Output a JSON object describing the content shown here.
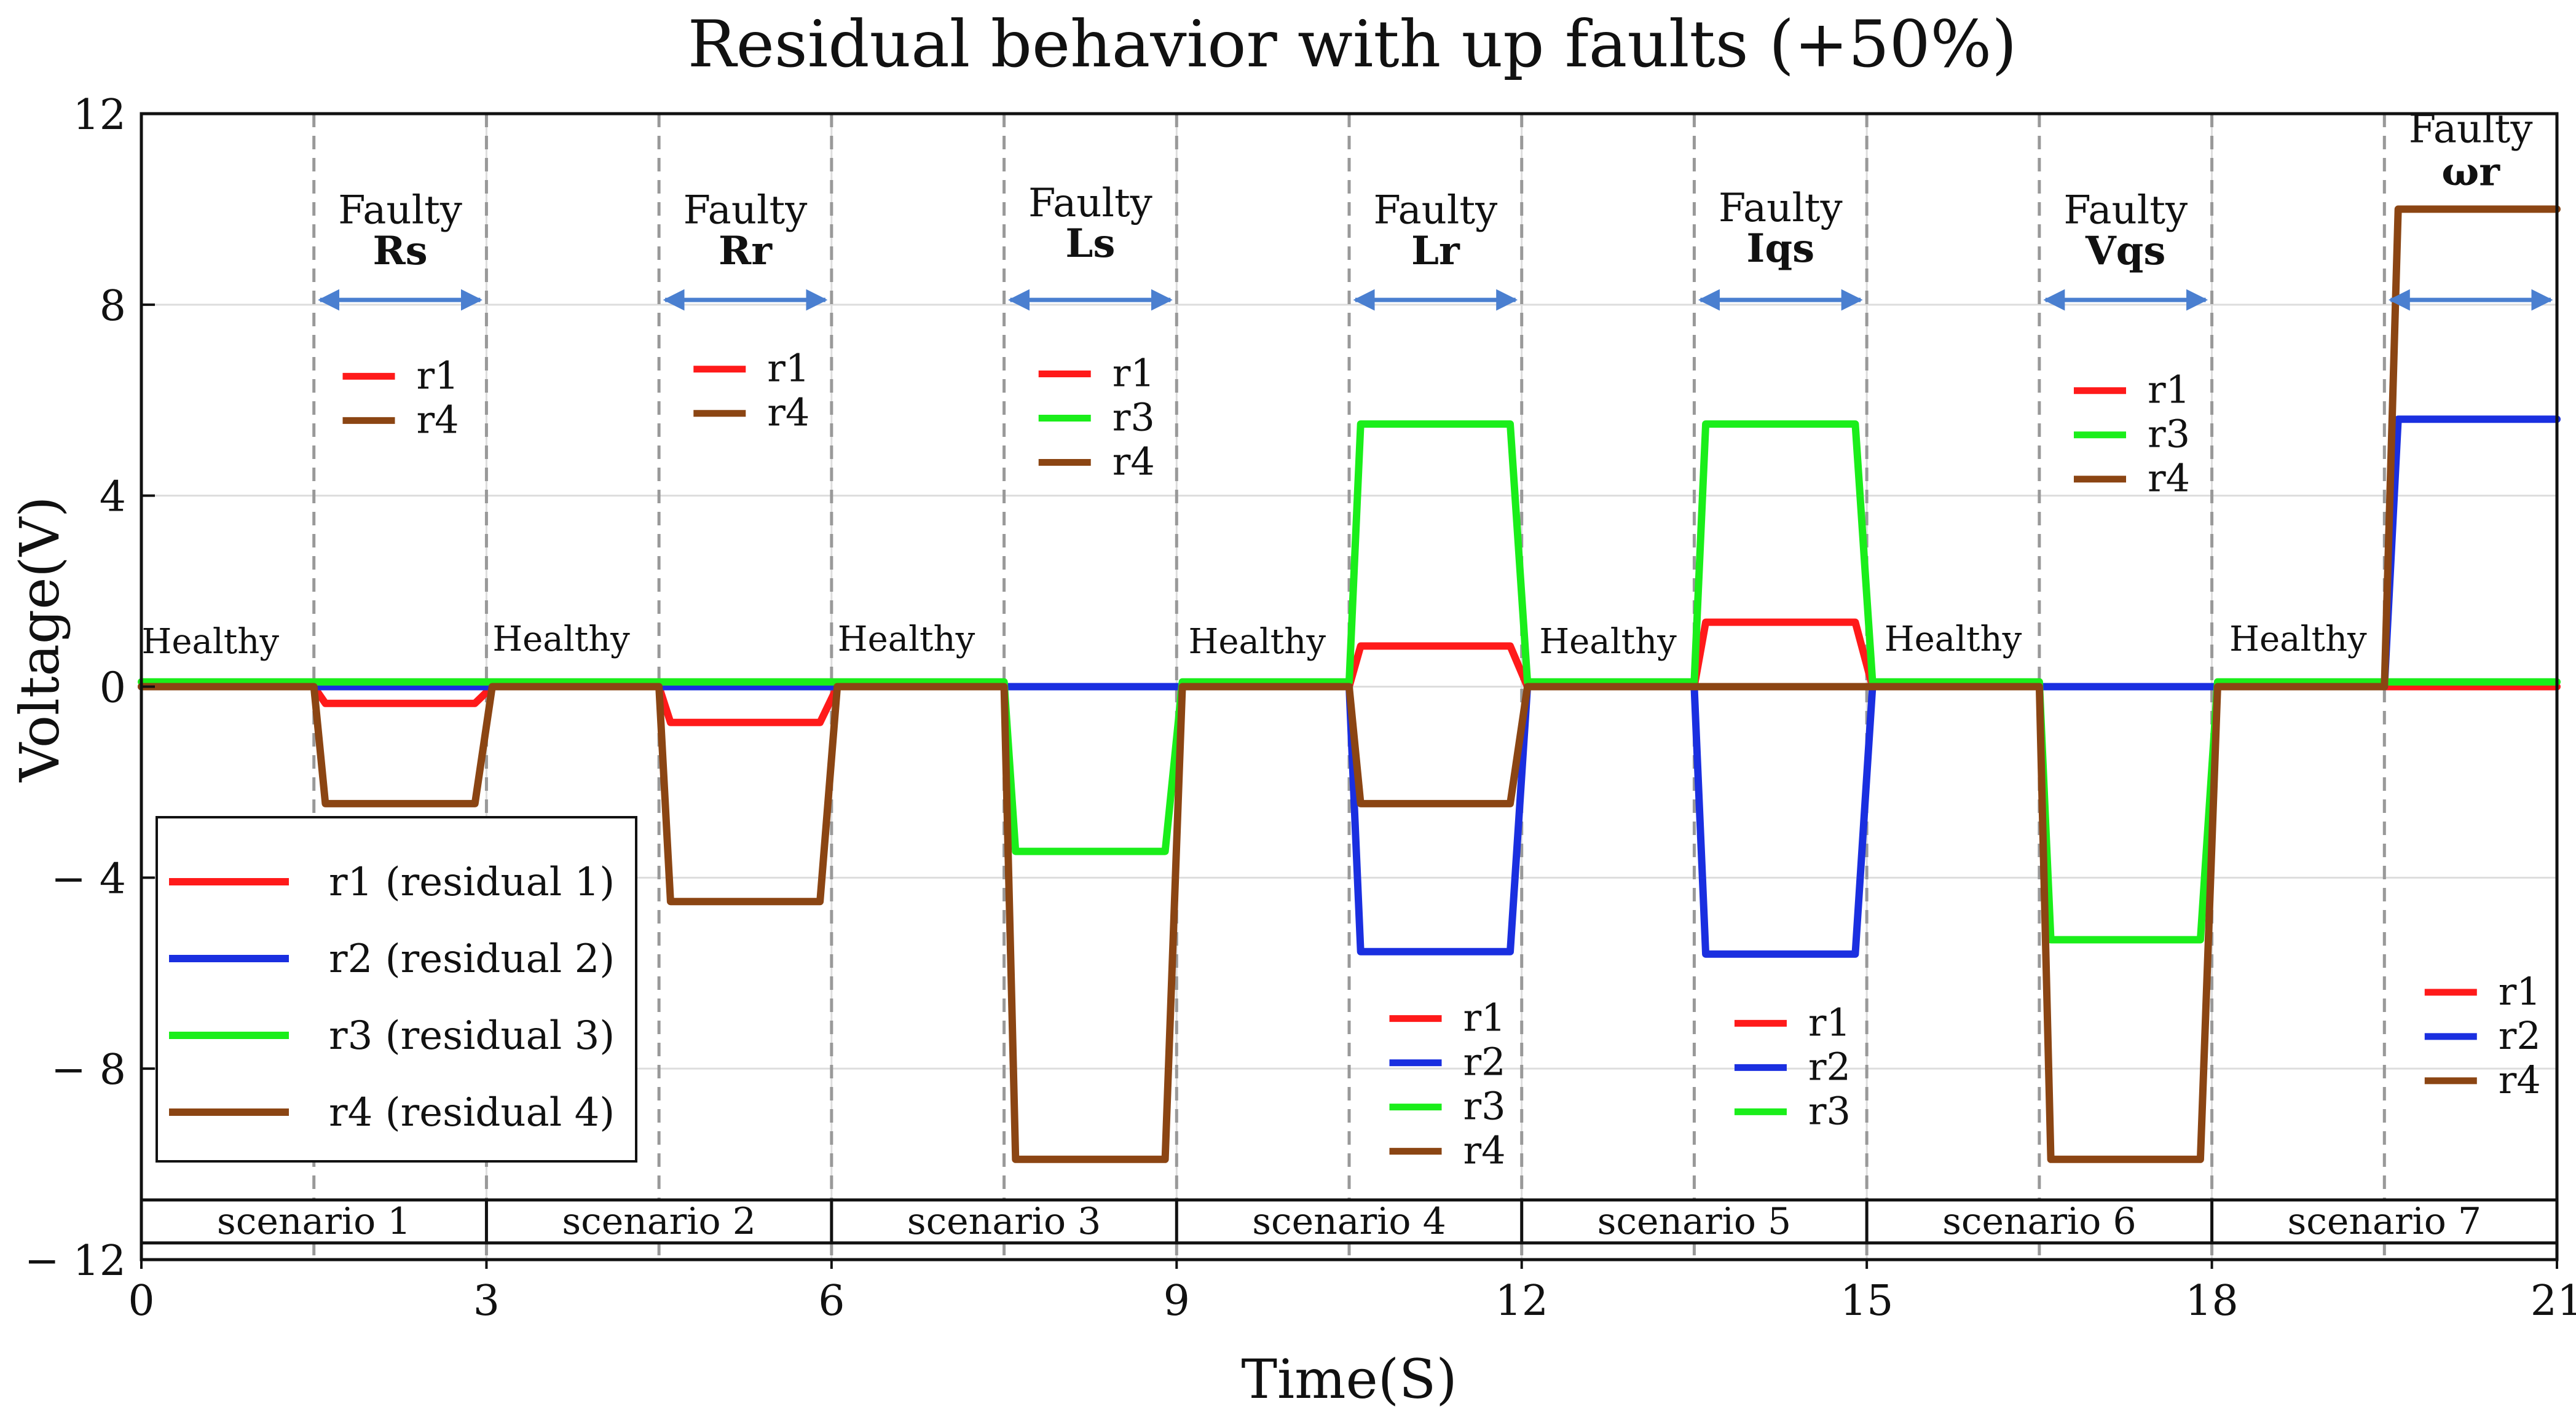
{
  "chart_data": {
    "type": "line",
    "title": "Residual behavior with up faults (+50%)",
    "xlabel": "Time(S)",
    "ylabel": "Voltage(V)",
    "xlim": [
      0,
      21
    ],
    "ylim": [
      -12,
      12
    ],
    "x_ticks": [
      {
        "value": 0,
        "label": "0"
      },
      {
        "value": 3,
        "label": "3"
      },
      {
        "value": 6,
        "label": "6"
      },
      {
        "value": 9,
        "label": "9"
      },
      {
        "value": 12,
        "label": "12"
      },
      {
        "value": 15,
        "label": "15"
      },
      {
        "value": 18,
        "label": "18"
      },
      {
        "value": 21,
        "label": "21"
      }
    ],
    "y_ticks": [
      {
        "value": 12,
        "label": "12"
      },
      {
        "value": 8,
        "label": "8"
      },
      {
        "value": 4,
        "label": "4"
      },
      {
        "value": 0,
        "label": "0"
      },
      {
        "value": -4,
        "label": "− 4"
      },
      {
        "value": -8,
        "label": "− 8"
      },
      {
        "value": -12,
        "label": "− 12"
      }
    ],
    "grid": true,
    "series": [
      {
        "name": "r1",
        "legend_label": "r1 (residual 1)",
        "color": "#ff1a1a",
        "points": [
          [
            0,
            0
          ],
          [
            1.5,
            0
          ],
          [
            1.6,
            -0.35
          ],
          [
            2.9,
            -0.35
          ],
          [
            3.05,
            0
          ],
          [
            4.5,
            0
          ],
          [
            4.6,
            -0.75
          ],
          [
            5.9,
            -0.75
          ],
          [
            6.05,
            0
          ],
          [
            10.5,
            0
          ],
          [
            10.6,
            0.85
          ],
          [
            11.9,
            0.85
          ],
          [
            12.05,
            0
          ],
          [
            13.5,
            0
          ],
          [
            13.6,
            1.35
          ],
          [
            14.9,
            1.35
          ],
          [
            15.05,
            0
          ],
          [
            21,
            0
          ]
        ]
      },
      {
        "name": "r2",
        "legend_label": "r2 (residual 2)",
        "color": "#1a2fe0",
        "points": [
          [
            0,
            0
          ],
          [
            10.5,
            0
          ],
          [
            10.6,
            -5.55
          ],
          [
            11.9,
            -5.55
          ],
          [
            12.05,
            0
          ],
          [
            13.5,
            0
          ],
          [
            13.6,
            -5.6
          ],
          [
            14.9,
            -5.6
          ],
          [
            15.05,
            0
          ],
          [
            19.5,
            0
          ],
          [
            19.62,
            5.6
          ],
          [
            21,
            5.6
          ]
        ]
      },
      {
        "name": "r3",
        "legend_label": "r3 (residual 3)",
        "color": "#1aee1a",
        "points": [
          [
            0,
            0.1
          ],
          [
            7.5,
            0.1
          ],
          [
            7.6,
            -3.45
          ],
          [
            8.9,
            -3.45
          ],
          [
            9.05,
            0.1
          ],
          [
            10.5,
            0.1
          ],
          [
            10.6,
            5.5
          ],
          [
            11.9,
            5.5
          ],
          [
            12.05,
            0.1
          ],
          [
            13.5,
            0.1
          ],
          [
            13.6,
            5.5
          ],
          [
            14.9,
            5.5
          ],
          [
            15.05,
            0.1
          ],
          [
            16.5,
            0.1
          ],
          [
            16.6,
            -5.3
          ],
          [
            17.9,
            -5.3
          ],
          [
            18.05,
            0.1
          ],
          [
            21,
            0.1
          ]
        ]
      },
      {
        "name": "r4",
        "legend_label": "r4 (residual 4)",
        "color": "#8b4513",
        "points": [
          [
            0,
            0
          ],
          [
            1.5,
            0
          ],
          [
            1.6,
            -2.45
          ],
          [
            2.9,
            -2.45
          ],
          [
            3.05,
            0
          ],
          [
            4.5,
            0
          ],
          [
            4.6,
            -4.5
          ],
          [
            5.9,
            -4.5
          ],
          [
            6.05,
            0
          ],
          [
            7.5,
            0
          ],
          [
            7.6,
            -9.9
          ],
          [
            8.9,
            -9.9
          ],
          [
            9.05,
            0
          ],
          [
            10.5,
            0
          ],
          [
            10.6,
            -2.45
          ],
          [
            11.9,
            -2.45
          ],
          [
            12.05,
            0
          ],
          [
            16.5,
            0
          ],
          [
            16.6,
            -9.9
          ],
          [
            17.9,
            -9.9
          ],
          [
            18.05,
            0
          ],
          [
            19.5,
            0
          ],
          [
            19.62,
            10
          ],
          [
            21,
            10
          ]
        ]
      }
    ],
    "fault_boundaries": [
      1.5,
      3,
      4.5,
      6,
      7.5,
      9,
      10.5,
      12,
      13.5,
      15,
      16.5,
      18,
      19.5
    ],
    "healthy_labels": [
      {
        "x": 0.6,
        "y": 0.7,
        "text": "Healthy"
      },
      {
        "x": 3.65,
        "y": 0.75,
        "text": "Healthy"
      },
      {
        "x": 6.65,
        "y": 0.75,
        "text": "Healthy"
      },
      {
        "x": 9.7,
        "y": 0.7,
        "text": "Healthy"
      },
      {
        "x": 12.75,
        "y": 0.7,
        "text": "Healthy"
      },
      {
        "x": 15.75,
        "y": 0.75,
        "text": "Healthy"
      },
      {
        "x": 18.75,
        "y": 0.75,
        "text": "Healthy"
      }
    ],
    "fault_annotations": [
      {
        "x0": 1.5,
        "x1": 3,
        "arrow_y": 8.1,
        "label_x": 2.25,
        "line1": "Faulty",
        "line2": "Rs",
        "line1_y": 9.7,
        "line2_y": 8.85,
        "keys": [
          "r1",
          "r4"
        ],
        "key_x": 1.75,
        "key_y": 6.5
      },
      {
        "x0": 4.5,
        "x1": 6,
        "arrow_y": 8.1,
        "label_x": 5.25,
        "line1": "Faulty",
        "line2": "Rr",
        "line1_y": 9.7,
        "line2_y": 8.85,
        "keys": [
          "r1",
          "r4"
        ],
        "key_x": 4.8,
        "key_y": 6.65
      },
      {
        "x0": 7.5,
        "x1": 9,
        "arrow_y": 8.1,
        "label_x": 8.25,
        "line1": "Faulty",
        "line2": "Ls",
        "line1_y": 9.85,
        "line2_y": 9.0,
        "keys": [
          "r1",
          "r3",
          "r4"
        ],
        "key_x": 7.8,
        "key_y": 6.55
      },
      {
        "x0": 10.5,
        "x1": 12,
        "arrow_y": 8.1,
        "label_x": 11.25,
        "line1": "Faulty",
        "line2": "Lr",
        "line1_y": 9.7,
        "line2_y": 8.85,
        "keys": [
          "r1",
          "r2",
          "r3",
          "r4"
        ],
        "key_x": 10.85,
        "key_y": -6.95
      },
      {
        "x0": 13.5,
        "x1": 15,
        "arrow_y": 8.1,
        "label_x": 14.25,
        "line1": "Faulty",
        "line2": "Iqs",
        "line1_y": 9.75,
        "line2_y": 8.9,
        "keys": [
          "r1",
          "r2",
          "r3"
        ],
        "key_x": 13.85,
        "key_y": -7.05
      },
      {
        "x0": 16.5,
        "x1": 18,
        "arrow_y": 8.1,
        "label_x": 17.25,
        "line1": "Faulty",
        "line2": "Vqs",
        "line1_y": 9.7,
        "line2_y": 8.85,
        "keys": [
          "r1",
          "r3",
          "r4"
        ],
        "key_x": 16.8,
        "key_y": 6.2
      },
      {
        "x0": 19.5,
        "x1": 21,
        "arrow_y": 8.1,
        "label_x": 20.25,
        "line1": "Faulty",
        "line2": "ωr",
        "line1_y": 11.4,
        "line2_y": 10.5,
        "keys": [
          "r1",
          "r2",
          "r4"
        ],
        "key_x": 19.85,
        "key_y": -6.4
      }
    ],
    "scenarios": [
      {
        "x0": 0,
        "x1": 3,
        "label": "scenario 1"
      },
      {
        "x0": 3,
        "x1": 6,
        "label": "scenario 2"
      },
      {
        "x0": 6,
        "x1": 9,
        "label": "scenario 3"
      },
      {
        "x0": 9,
        "x1": 12,
        "label": "scenario 4"
      },
      {
        "x0": 12,
        "x1": 15,
        "label": "scenario 5"
      },
      {
        "x0": 15,
        "x1": 18,
        "label": "scenario 6"
      },
      {
        "x0": 18,
        "x1": 21,
        "label": "scenario 7"
      }
    ],
    "legend_position": "lower-left",
    "colors": {
      "arrow": "#4a7fd0",
      "grid": "#dddddd",
      "boundary": "#999999"
    }
  }
}
